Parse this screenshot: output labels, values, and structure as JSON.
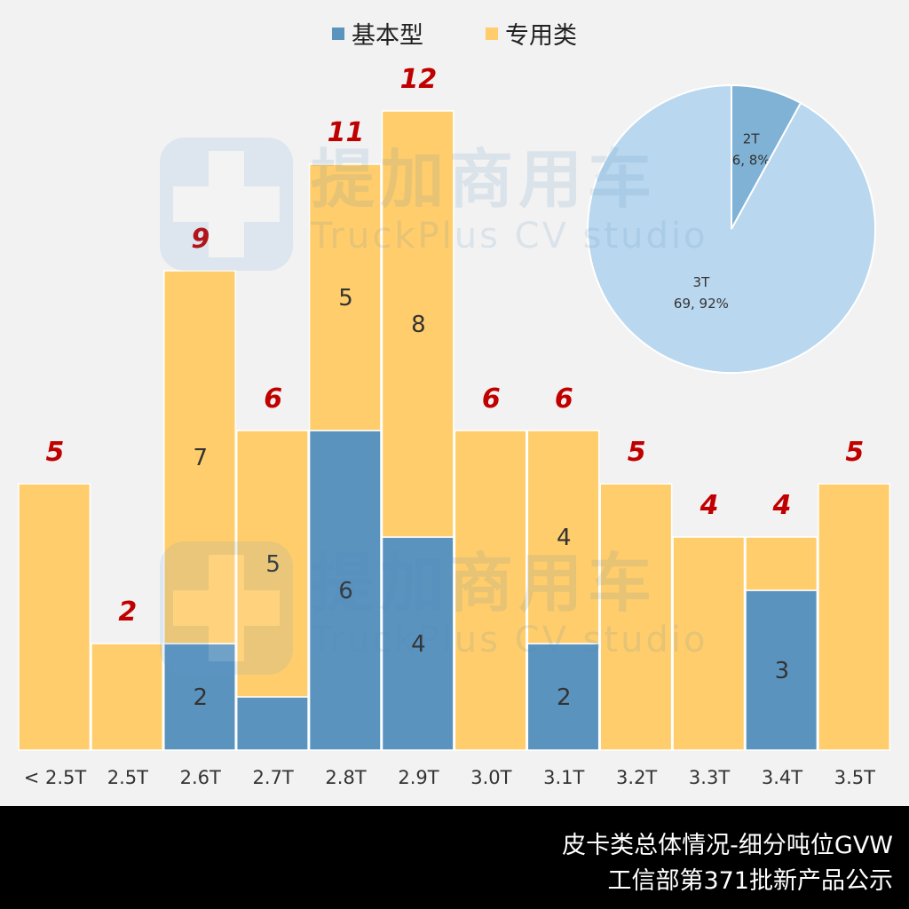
{
  "legend": [
    {
      "name": "基本型",
      "color": "#5b93bf"
    },
    {
      "name": "专用类",
      "color": "#ffcd6b"
    }
  ],
  "chart_data": [
    {
      "type": "bar",
      "stacked": true,
      "categories": [
        "< 2.5T",
        "2.5T",
        "2.6T",
        "2.7T",
        "2.8T",
        "2.9T",
        "3.0T",
        "3.1T",
        "3.2T",
        "3.3T",
        "3.4T",
        "3.5T"
      ],
      "series": [
        {
          "name": "基本型",
          "values": [
            0,
            0,
            2,
            1,
            6,
            4,
            0,
            2,
            0,
            0,
            3,
            0
          ],
          "color": "#5b93bf"
        },
        {
          "name": "专用类",
          "values": [
            5,
            2,
            7,
            5,
            5,
            8,
            6,
            4,
            5,
            4,
            1,
            5
          ],
          "color": "#ffcd6b"
        }
      ],
      "totals": [
        5,
        2,
        9,
        6,
        11,
        12,
        6,
        6,
        5,
        4,
        4,
        5
      ],
      "segment_labels": {
        "基本型": [
          "",
          "",
          "2",
          "",
          "6",
          "4",
          "",
          "2",
          "",
          "",
          "3",
          ""
        ],
        "专用类": [
          "",
          "",
          "7",
          "5",
          "5",
          "8",
          "",
          "4",
          "",
          "",
          "",
          ""
        ]
      },
      "ylim": [
        0,
        12
      ],
      "total_label_color": "#c00000",
      "grid": false
    },
    {
      "type": "pie",
      "slices": [
        {
          "label": "2T",
          "value": 6,
          "percent": "8%",
          "text": "6, 8%",
          "color": "#7fb2d5"
        },
        {
          "label": "3T",
          "value": 69,
          "percent": "92%",
          "text": "69, 92%",
          "color": "#b9d7ee"
        }
      ]
    }
  ],
  "watermark": {
    "cn": "提加商用车",
    "en": "TruckPlus CV studio"
  },
  "footer": {
    "line1": "皮卡类总体情况-细分吨位GVW",
    "line2": "工信部第371批新产品公示"
  }
}
